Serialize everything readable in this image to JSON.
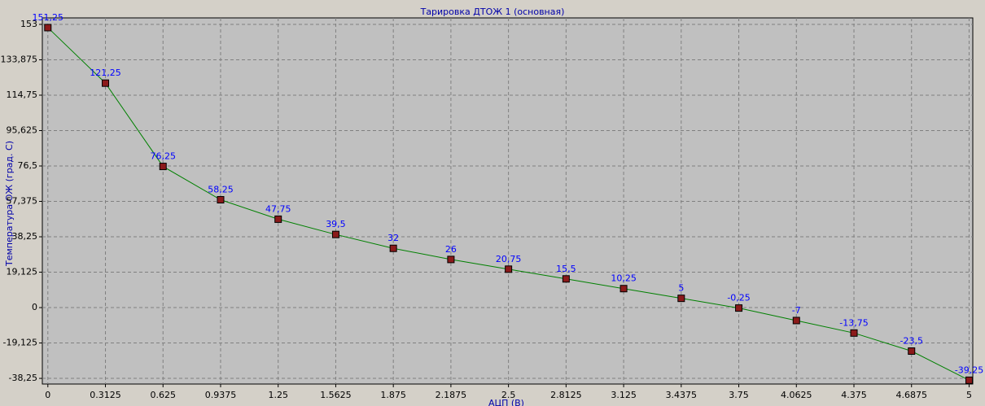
{
  "chart_data": {
    "type": "line",
    "title": "Тарировка ДТОЖ 1 (основная)",
    "x_label": "АЦП (В)",
    "y_label": "Температура ОЖ (град. С)",
    "x": [
      0,
      0.3125,
      0.625,
      0.9375,
      1.25,
      1.5625,
      1.875,
      2.1875,
      2.5,
      2.8125,
      3.125,
      3.4375,
      3.75,
      4.0625,
      4.375,
      4.6875,
      5
    ],
    "series": [
      {
        "color": "#008000",
        "marker_color": "#8b1a1a",
        "label_color": "#0000ff",
        "values": [
          151.25,
          121.25,
          76.25,
          58.25,
          47.75,
          39.5,
          32,
          26,
          20.75,
          15.5,
          10.25,
          5,
          -0.25,
          -7,
          -13.75,
          -23.5,
          -39.25
        ],
        "value_labels": [
          "151,25",
          "121,25",
          "76,25",
          "58,25",
          "47,75",
          "39,5",
          "32",
          "26",
          "20,75",
          "15,5",
          "10,25",
          "5",
          "-0,25",
          "-7",
          "-13,75",
          "-23,5",
          "-39,25"
        ]
      }
    ],
    "xlim": [
      -0.03,
      5.02
    ],
    "ylim": [
      -41.3,
      156.5
    ],
    "xticks": [
      0,
      0.3125,
      0.625,
      0.9375,
      1.25,
      1.5625,
      1.875,
      2.1875,
      2.5,
      2.8125,
      3.125,
      3.4375,
      3.75,
      4.0625,
      4.375,
      4.6875,
      5
    ],
    "yticks": [
      153,
      {
        "value": 133.875,
        "label": "133,875"
      },
      {
        "value": 114.75,
        "label": "114,75"
      },
      {
        "value": 95.625,
        "label": "95,625"
      },
      {
        "value": 76.5,
        "label": "76,5"
      },
      {
        "value": 57.375,
        "label": "57,375"
      },
      {
        "value": 38.25,
        "label": "38,25"
      },
      {
        "value": 19.125,
        "label": "19,125"
      },
      0,
      {
        "value": -19.125,
        "label": "-19,125"
      },
      {
        "value": -38.25,
        "label": "-38,25"
      }
    ],
    "grid": true
  }
}
